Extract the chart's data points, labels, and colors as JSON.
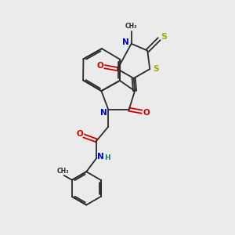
{
  "bg_color": "#ebebeb",
  "bond_color": "#2a2a2a",
  "N_color": "#0000cc",
  "O_color": "#cc0000",
  "S_color": "#aaaa00",
  "NH_color": "#008080",
  "lw": 1.3,
  "xlim": [
    0,
    10
  ],
  "ylim": [
    0,
    10
  ]
}
